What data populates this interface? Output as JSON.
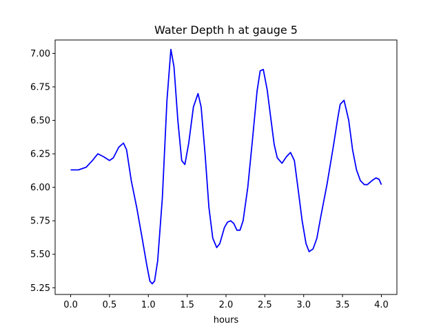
{
  "chart_data": {
    "type": "line",
    "title": "Water Depth h at gauge 5",
    "xlabel": "hours",
    "ylabel": "",
    "xlim": [
      -0.2,
      4.2
    ],
    "ylim": [
      5.2,
      7.1
    ],
    "xticks": [
      0.0,
      0.5,
      1.0,
      1.5,
      2.0,
      2.5,
      3.0,
      3.5,
      4.0
    ],
    "xtick_labels": [
      "0.0",
      "0.5",
      "1.0",
      "1.5",
      "2.0",
      "2.5",
      "3.0",
      "3.5",
      "4.0"
    ],
    "yticks": [
      5.25,
      5.5,
      5.75,
      6.0,
      6.25,
      6.5,
      6.75,
      7.0
    ],
    "ytick_labels": [
      "5.25",
      "5.50",
      "5.75",
      "6.00",
      "6.25",
      "6.50",
      "6.75",
      "7.00"
    ],
    "grid": false,
    "series": [
      {
        "color": "#0000ff",
        "x": [
          0.0,
          0.1,
          0.2,
          0.28,
          0.35,
          0.42,
          0.5,
          0.55,
          0.62,
          0.68,
          0.72,
          0.78,
          0.85,
          0.92,
          0.98,
          1.02,
          1.05,
          1.08,
          1.12,
          1.18,
          1.24,
          1.29,
          1.33,
          1.38,
          1.43,
          1.47,
          1.52,
          1.58,
          1.64,
          1.68,
          1.73,
          1.78,
          1.83,
          1.88,
          1.92,
          1.98,
          2.02,
          2.06,
          2.1,
          2.14,
          2.18,
          2.22,
          2.28,
          2.34,
          2.4,
          2.44,
          2.48,
          2.53,
          2.58,
          2.62,
          2.66,
          2.72,
          2.78,
          2.83,
          2.88,
          2.93,
          2.98,
          3.03,
          3.07,
          3.12,
          3.17,
          3.22,
          3.3,
          3.38,
          3.44,
          3.47,
          3.52,
          3.58,
          3.63,
          3.68,
          3.73,
          3.78,
          3.82,
          3.88,
          3.93,
          3.97,
          4.0
        ],
        "y": [
          6.13,
          6.13,
          6.15,
          6.2,
          6.25,
          6.23,
          6.2,
          6.22,
          6.3,
          6.33,
          6.28,
          6.05,
          5.85,
          5.62,
          5.42,
          5.3,
          5.28,
          5.3,
          5.45,
          5.92,
          6.65,
          7.03,
          6.9,
          6.5,
          6.2,
          6.17,
          6.33,
          6.6,
          6.7,
          6.6,
          6.25,
          5.85,
          5.62,
          5.55,
          5.58,
          5.7,
          5.74,
          5.75,
          5.73,
          5.68,
          5.68,
          5.75,
          6.0,
          6.35,
          6.72,
          6.87,
          6.88,
          6.73,
          6.5,
          6.32,
          6.22,
          6.18,
          6.23,
          6.26,
          6.2,
          5.98,
          5.75,
          5.58,
          5.52,
          5.54,
          5.62,
          5.78,
          6.02,
          6.3,
          6.52,
          6.62,
          6.65,
          6.5,
          6.28,
          6.13,
          6.05,
          6.02,
          6.02,
          6.05,
          6.07,
          6.06,
          6.02
        ]
      }
    ]
  }
}
